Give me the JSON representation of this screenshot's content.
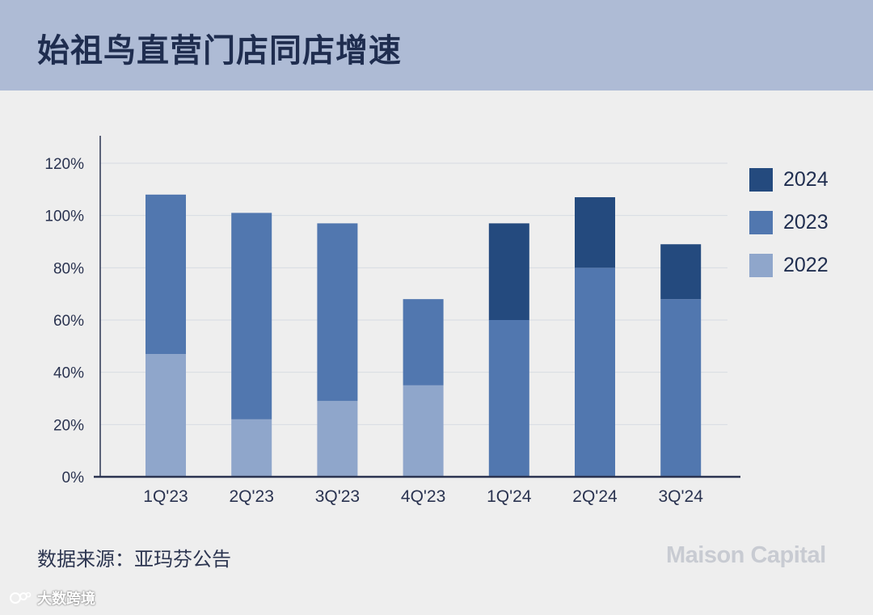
{
  "header": {
    "title": "始祖鸟直营门店同店增速"
  },
  "chart_data": {
    "type": "bar",
    "stacked": true,
    "categories": [
      "1Q'23",
      "2Q'23",
      "3Q'23",
      "4Q'23",
      "1Q'24",
      "2Q'24",
      "3Q'24"
    ],
    "ylim": [
      0,
      120
    ],
    "yticks": [
      "0%",
      "20%",
      "40%",
      "60%",
      "80%",
      "100%",
      "120%"
    ],
    "series": [
      {
        "name": "2022",
        "color": "#8fa6cb",
        "values": [
          47,
          22,
          29,
          35,
          0,
          0,
          0
        ]
      },
      {
        "name": "2023",
        "color": "#5177af",
        "values": [
          61,
          79,
          68,
          33,
          60,
          80,
          68
        ]
      },
      {
        "name": "2024",
        "color": "#244a7e",
        "values": [
          0,
          0,
          0,
          0,
          37,
          27,
          21
        ]
      }
    ],
    "legend": {
      "position": "right",
      "order": [
        "2024",
        "2023",
        "2022"
      ]
    },
    "grid": true
  },
  "footer": {
    "source": "数据来源：亚玛芬公告",
    "brand": "Maison Capital",
    "watermark": "大数跨境"
  }
}
